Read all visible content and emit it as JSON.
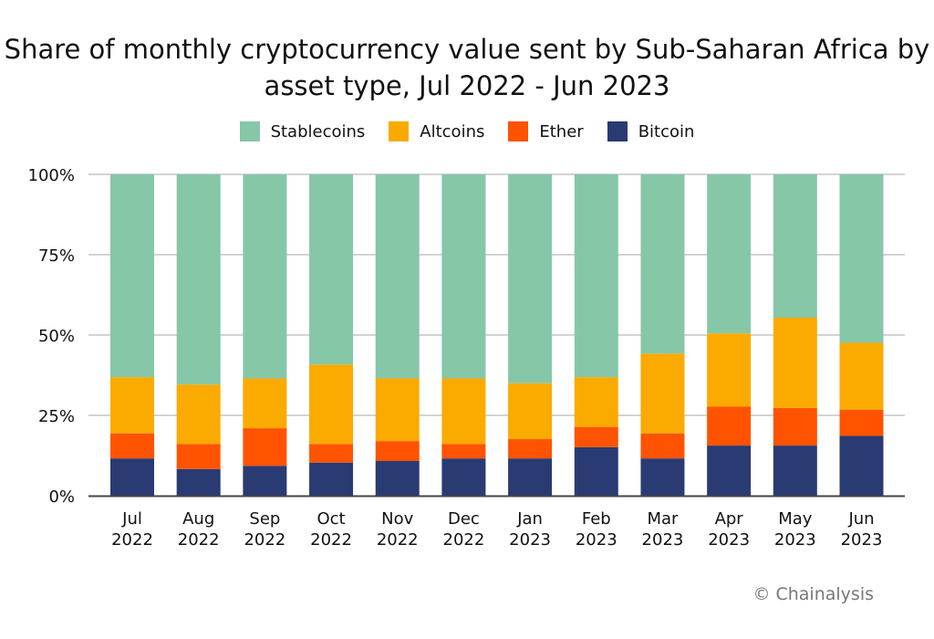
{
  "chart_data": {
    "type": "bar",
    "stacked": true,
    "title": "Share of monthly cryptocurrency value sent by Sub-Saharan Africa by asset type, Jul 2022 - Jun 2023",
    "xlabel": "",
    "ylabel": "",
    "ylim": [
      0,
      100
    ],
    "yticks": [
      "0%",
      "25%",
      "50%",
      "75%",
      "100%"
    ],
    "grid": true,
    "legend_position": "top",
    "categories": [
      [
        "Jul",
        "2022"
      ],
      [
        "Aug",
        "2022"
      ],
      [
        "Sep",
        "2022"
      ],
      [
        "Oct",
        "2022"
      ],
      [
        "Nov",
        "2022"
      ],
      [
        "Dec",
        "2022"
      ],
      [
        "Jan",
        "2023"
      ],
      [
        "Feb",
        "2023"
      ],
      [
        "Mar",
        "2023"
      ],
      [
        "Apr",
        "2023"
      ],
      [
        "May",
        "2023"
      ],
      [
        "Jun",
        "2023"
      ]
    ],
    "series": [
      {
        "name": "Bitcoin",
        "color": "#2a3a73",
        "values": [
          11.6,
          8.3,
          9.3,
          10.3,
          10.8,
          11.6,
          11.6,
          15.1,
          11.6,
          15.6,
          15.6,
          18.6
        ]
      },
      {
        "name": "Ether",
        "color": "#ff5300",
        "values": [
          7.8,
          7.8,
          11.7,
          5.8,
          6.2,
          4.5,
          6.0,
          6.3,
          7.8,
          12.1,
          11.7,
          8.1
        ]
      },
      {
        "name": "Altcoins",
        "color": "#fbaa00",
        "values": [
          17.5,
          18.5,
          15.5,
          24.7,
          19.5,
          20.4,
          17.4,
          15.5,
          24.8,
          22.8,
          28.1,
          20.9
        ]
      },
      {
        "name": "Stablecoins",
        "color": "#86c7a8",
        "values": [
          63.1,
          65.4,
          63.5,
          59.2,
          63.5,
          63.5,
          65.0,
          63.1,
          55.8,
          49.5,
          44.6,
          52.4
        ]
      }
    ],
    "legend_order": [
      "Stablecoins",
      "Altcoins",
      "Ether",
      "Bitcoin"
    ]
  },
  "credit": "© Chainalysis"
}
